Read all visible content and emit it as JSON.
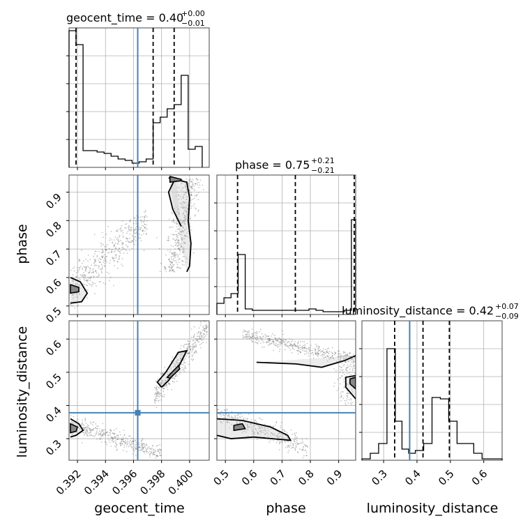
{
  "chart_data": {
    "type": "corner",
    "parameters": [
      "geocent_time",
      "phase",
      "luminosity_distance"
    ],
    "truth": {
      "geocent_time": 0.3963,
      "phase": null,
      "luminosity_distance": 0.378
    },
    "colors": {
      "truth": "#4682b4",
      "hist": "#000000",
      "grid": "#b0b0b0",
      "points": "#555555"
    },
    "titles": {
      "geocent_time": {
        "text": "geocent_time = 0.40",
        "plus": "+0.00",
        "minus": "−0.01"
      },
      "phase": {
        "text": "phase = 0.75",
        "plus": "+0.21",
        "minus": "−0.21"
      },
      "luminosity_distance": {
        "text": "luminosity_distance = 0.42",
        "plus": "+0.07",
        "minus": "−0.09"
      }
    },
    "axes": {
      "geocent_time": {
        "label": "geocent_time",
        "range": [
          0.3914,
          0.4014
        ],
        "ticks": [
          0.392,
          0.394,
          0.396,
          0.398,
          0.4
        ],
        "tick_labels": [
          "0.392",
          "0.394",
          "0.396",
          "0.398",
          "0.400"
        ]
      },
      "phase": {
        "label": "phase",
        "range": [
          0.47,
          0.96
        ],
        "ticks": [
          0.5,
          0.6,
          0.7,
          0.8,
          0.9
        ],
        "tick_labels": [
          "0.5",
          "0.6",
          "0.7",
          "0.8",
          "0.9"
        ]
      },
      "luminosity_distance": {
        "label": "luminosity_distance",
        "range": [
          0.235,
          0.655
        ],
        "ticks": [
          0.3,
          0.4,
          0.5,
          0.6
        ],
        "tick_labels": [
          "0.3",
          "0.4",
          "0.5",
          "0.6"
        ]
      }
    },
    "hist_geocent_time": {
      "edges": [
        0.3914,
        0.3919,
        0.3924,
        0.3929,
        0.3934,
        0.3939,
        0.3944,
        0.3949,
        0.3954,
        0.3959,
        0.3964,
        0.3969,
        0.3974,
        0.3979,
        0.3984,
        0.3989,
        0.3994,
        0.3999,
        0.4004,
        0.4009
      ],
      "values": [
        0.98,
        0.88,
        0.12,
        0.12,
        0.11,
        0.1,
        0.08,
        0.06,
        0.05,
        0.03,
        0.04,
        0.06,
        0.32,
        0.36,
        0.42,
        0.45,
        0.66,
        0.13,
        0.15
      ],
      "quantiles": [
        0.3919,
        0.3974,
        0.3989
      ]
    },
    "hist_phase": {
      "edges": [
        0.47,
        0.495,
        0.52,
        0.545,
        0.57,
        0.595,
        0.62,
        0.645,
        0.67,
        0.695,
        0.72,
        0.745,
        0.77,
        0.795,
        0.82,
        0.845,
        0.87,
        0.895,
        0.92,
        0.945,
        0.96
      ],
      "values": [
        0.08,
        0.12,
        0.15,
        0.43,
        0.04,
        0.03,
        0.03,
        0.03,
        0.03,
        0.03,
        0.03,
        0.03,
        0.03,
        0.04,
        0.03,
        0.02,
        0.02,
        0.02,
        0.03,
        0.68
      ],
      "quantiles": [
        0.543,
        0.747,
        0.955
      ]
    },
    "hist_luminosity_distance": {
      "edges": [
        0.235,
        0.26,
        0.285,
        0.31,
        0.335,
        0.355,
        0.375,
        0.395,
        0.42,
        0.445,
        0.47,
        0.495,
        0.52,
        0.545,
        0.57,
        0.595,
        0.655
      ],
      "values": [
        0.01,
        0.05,
        0.12,
        0.8,
        0.28,
        0.08,
        0.05,
        0.07,
        0.12,
        0.45,
        0.44,
        0.28,
        0.12,
        0.12,
        0.05,
        0.01
      ],
      "quantiles": [
        0.333,
        0.418,
        0.497
      ]
    },
    "contours": {
      "phase_vs_geocent_time": [
        {
          "level": "outer",
          "points": [
            [
              0.3915,
              0.6
            ],
            [
              0.3922,
              0.585
            ],
            [
              0.3927,
              0.545
            ],
            [
              0.3923,
              0.515
            ],
            [
              0.3915,
              0.51
            ]
          ]
        },
        {
          "level": "inner",
          "points": [
            [
              0.3915,
              0.575
            ],
            [
              0.3921,
              0.565
            ],
            [
              0.3921,
              0.55
            ],
            [
              0.3915,
              0.545
            ]
          ]
        },
        {
          "level": "outer",
          "points": [
            [
              0.3985,
              0.95
            ],
            [
              0.3998,
              0.935
            ],
            [
              0.4,
              0.88
            ],
            [
              0.3999,
              0.8
            ],
            [
              0.4001,
              0.72
            ],
            [
              0.4,
              0.64
            ],
            [
              0.3998,
              0.62
            ]
          ]
        },
        {
          "level": "outer",
          "points": [
            [
              0.399,
              0.95
            ],
            [
              0.3985,
              0.9
            ],
            [
              0.3988,
              0.84
            ],
            [
              0.3994,
              0.78
            ]
          ]
        },
        {
          "level": "inner",
          "points": [
            [
              0.3986,
              0.955
            ],
            [
              0.3994,
              0.945
            ],
            [
              0.3994,
              0.94
            ],
            [
              0.3986,
              0.935
            ]
          ]
        }
      ],
      "ld_vs_geocent_time": [
        {
          "level": "outer",
          "points": [
            [
              0.3915,
              0.36
            ],
            [
              0.3921,
              0.345
            ],
            [
              0.3924,
              0.325
            ],
            [
              0.3919,
              0.31
            ],
            [
              0.3915,
              0.305
            ]
          ]
        },
        {
          "level": "inner",
          "points": [
            [
              0.3915,
              0.345
            ],
            [
              0.392,
              0.335
            ],
            [
              0.3919,
              0.322
            ],
            [
              0.3915,
              0.318
            ]
          ]
        },
        {
          "level": "outer",
          "points": [
            [
              0.398,
              0.455
            ],
            [
              0.3985,
              0.475
            ],
            [
              0.3992,
              0.515
            ],
            [
              0.3998,
              0.565
            ],
            [
              0.3992,
              0.56
            ],
            [
              0.3983,
              0.5
            ],
            [
              0.3977,
              0.47
            ],
            [
              0.398,
              0.455
            ]
          ]
        },
        {
          "level": "inner",
          "points": [
            [
              0.3984,
              0.485
            ],
            [
              0.3992,
              0.52
            ],
            [
              0.3993,
              0.51
            ],
            [
              0.3986,
              0.482
            ]
          ]
        }
      ],
      "ld_vs_phase": [
        {
          "level": "outer",
          "points": [
            [
              0.61,
              0.53
            ],
            [
              0.75,
              0.525
            ],
            [
              0.84,
              0.515
            ],
            [
              0.92,
              0.535
            ],
            [
              0.96,
              0.55
            ]
          ]
        },
        {
          "level": "outer",
          "points": [
            [
              0.96,
              0.42
            ],
            [
              0.925,
              0.455
            ],
            [
              0.925,
              0.485
            ],
            [
              0.96,
              0.49
            ]
          ]
        },
        {
          "level": "inner",
          "points": [
            [
              0.96,
              0.45
            ],
            [
              0.94,
              0.465
            ],
            [
              0.94,
              0.48
            ],
            [
              0.96,
              0.485
            ]
          ]
        },
        {
          "level": "outer",
          "points": [
            [
              0.47,
              0.36
            ],
            [
              0.56,
              0.355
            ],
            [
              0.66,
              0.335
            ],
            [
              0.72,
              0.31
            ],
            [
              0.73,
              0.295
            ],
            [
              0.6,
              0.305
            ],
            [
              0.52,
              0.3
            ],
            [
              0.47,
              0.31
            ]
          ]
        },
        {
          "level": "inner",
          "points": [
            [
              0.53,
              0.34
            ],
            [
              0.56,
              0.345
            ],
            [
              0.57,
              0.33
            ],
            [
              0.53,
              0.325
            ]
          ]
        }
      ]
    },
    "point_clouds": {
      "phase_vs_geocent_time": {
        "count": 900,
        "seed": 7
      },
      "ld_vs_geocent_time": {
        "count": 800,
        "seed": 11
      },
      "ld_vs_phase": {
        "count": 900,
        "seed": 19
      }
    }
  }
}
